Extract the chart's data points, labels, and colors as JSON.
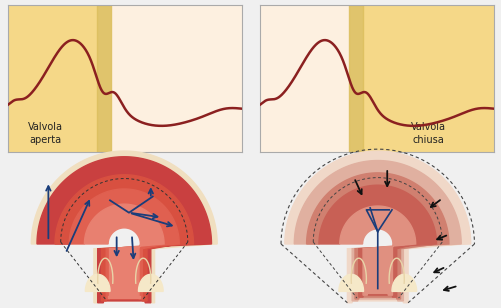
{
  "bg_light": "#fdf0e0",
  "bg_dark": "#f5d888",
  "bg_stripe": "#e8cc70",
  "line_color": "#8b2020",
  "line_width": 1.8,
  "label_left": "Valvola\naperta",
  "label_right": "Valvola\nchiusa",
  "panel_bg": "#fdf0e0",
  "panel_band_left": "#f5d888",
  "panel_band_right": "#f5d888",
  "fig_bg": "#f0f0f0",
  "heart_left_outer": "#c94040",
  "heart_left_mid": "#d45a45",
  "heart_left_inner": "#e07060",
  "heart_left_cavity": "#e8a090",
  "heart_left_cream": "#f5e8d0",
  "heart_right_outer": "#e0b0a0",
  "heart_right_mid": "#d07060",
  "heart_right_inner": "#e09080",
  "heart_right_cavity": "#e8b0a0",
  "heart_right_cream": "#f5e8d0",
  "blue_arrow": "#1a3d7a",
  "black_arrow": "#111111",
  "dashed_line": "#444444"
}
